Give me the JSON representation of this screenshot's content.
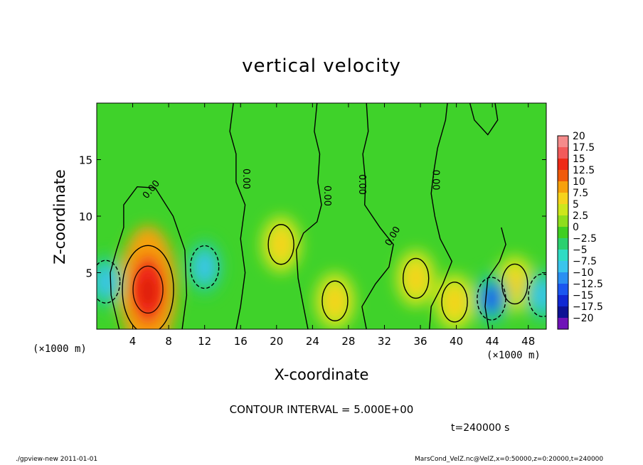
{
  "chart_data": {
    "type": "heatmap",
    "title": "vertical velocity",
    "xlabel": "X-coordinate",
    "ylabel": "Z-coordinate",
    "x_unit_label": "(×1000 m)",
    "xlim": [
      0,
      50
    ],
    "ylim": [
      0,
      20
    ],
    "x_ticks": [
      4,
      8,
      12,
      16,
      20,
      24,
      28,
      32,
      36,
      40,
      44,
      48
    ],
    "y_ticks": [
      5,
      10,
      15
    ],
    "contour_label": "0.00",
    "contour_interval_text": "CONTOUR INTERVAL = 5.000E+00",
    "time_text": "t=240000 s",
    "colorbar": {
      "levels": [
        "20",
        "17.5",
        "15",
        "12.5",
        "10",
        "7.5",
        "5",
        "2.5",
        "0",
        "−2.5",
        "−5",
        "−7.5",
        "−10",
        "−12.5",
        "−15",
        "−17.5",
        "−20"
      ],
      "colors": [
        "#f58b8b",
        "#f25a5a",
        "#ee2a17",
        "#f05a0a",
        "#f7a10d",
        "#f6d31c",
        "#cde61c",
        "#8ede1d",
        "#3fcf21",
        "#2bd06f",
        "#2fdcc4",
        "#3ac5ec",
        "#2a8ff2",
        "#1a57f0",
        "#1028d3",
        "#0d1194",
        "#6f12b8"
      ]
    },
    "features": [
      {
        "type": "updraft",
        "x": 5.7,
        "z": 3.5,
        "peak": 15
      },
      {
        "type": "updraft",
        "x": 20.5,
        "z": 7.5,
        "peak": 5
      },
      {
        "type": "updraft",
        "x": 26.5,
        "z": 2.5,
        "peak": 5
      },
      {
        "type": "updraft",
        "x": 35.5,
        "z": 4.5,
        "peak": 5
      },
      {
        "type": "updraft",
        "x": 39.8,
        "z": 2.4,
        "peak": 5
      },
      {
        "type": "updraft",
        "x": 46.5,
        "z": 4.0,
        "peak": 5
      },
      {
        "type": "downdraft",
        "x": 12,
        "z": 5.5,
        "peak": -5
      },
      {
        "type": "downdraft",
        "x": 1,
        "z": 4.2,
        "peak": -5
      },
      {
        "type": "downdraft",
        "x": 43.9,
        "z": 2.7,
        "peak": -10
      },
      {
        "type": "downdraft",
        "x": 49.6,
        "z": 3.0,
        "peak": -5
      }
    ]
  },
  "footer": {
    "left": "./gpview-new   2011-01-01",
    "right": "MarsCond_VelZ.nc@VelZ,x=0:50000,z=0:20000,t=240000"
  }
}
